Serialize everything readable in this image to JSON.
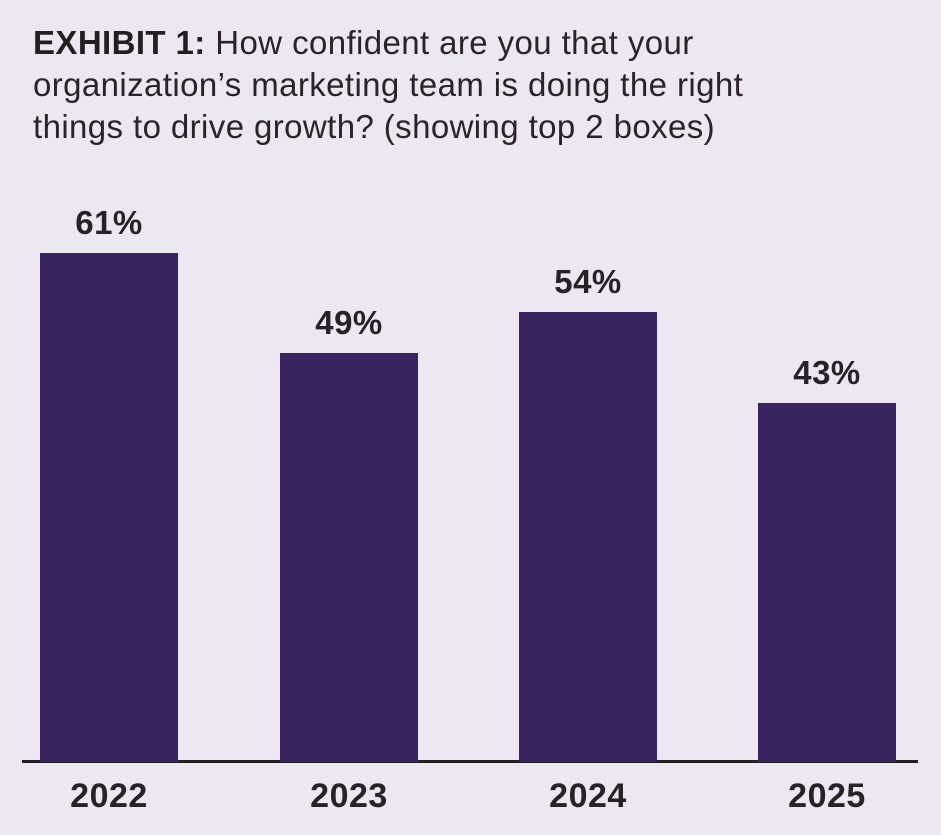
{
  "title": {
    "bold_label": "EXHIBIT 1:",
    "lines": [
      "How confident are you that your",
      "organization’s marketing team is doing the right",
      "things to drive growth? (showing top 2 boxes)"
    ]
  },
  "chart_data": {
    "type": "bar",
    "title": "EXHIBIT 1: How confident are you that your organization’s marketing team is doing the right things to drive growth? (showing top 2 boxes)",
    "categories": [
      "2022",
      "2023",
      "2024",
      "2025"
    ],
    "values": [
      61,
      49,
      54,
      43
    ],
    "value_labels": [
      "61%",
      "49%",
      "54%",
      "43%"
    ],
    "unit": "percent",
    "xlabel": "",
    "ylabel": "",
    "grid": false,
    "legend": null,
    "value_labels_position": "above-bars",
    "colors": {
      "bar": "#382560",
      "background": "#ECE8F2",
      "label_text": "#262226",
      "title_text": "#2A2428",
      "axis_line": "#231F20"
    }
  }
}
